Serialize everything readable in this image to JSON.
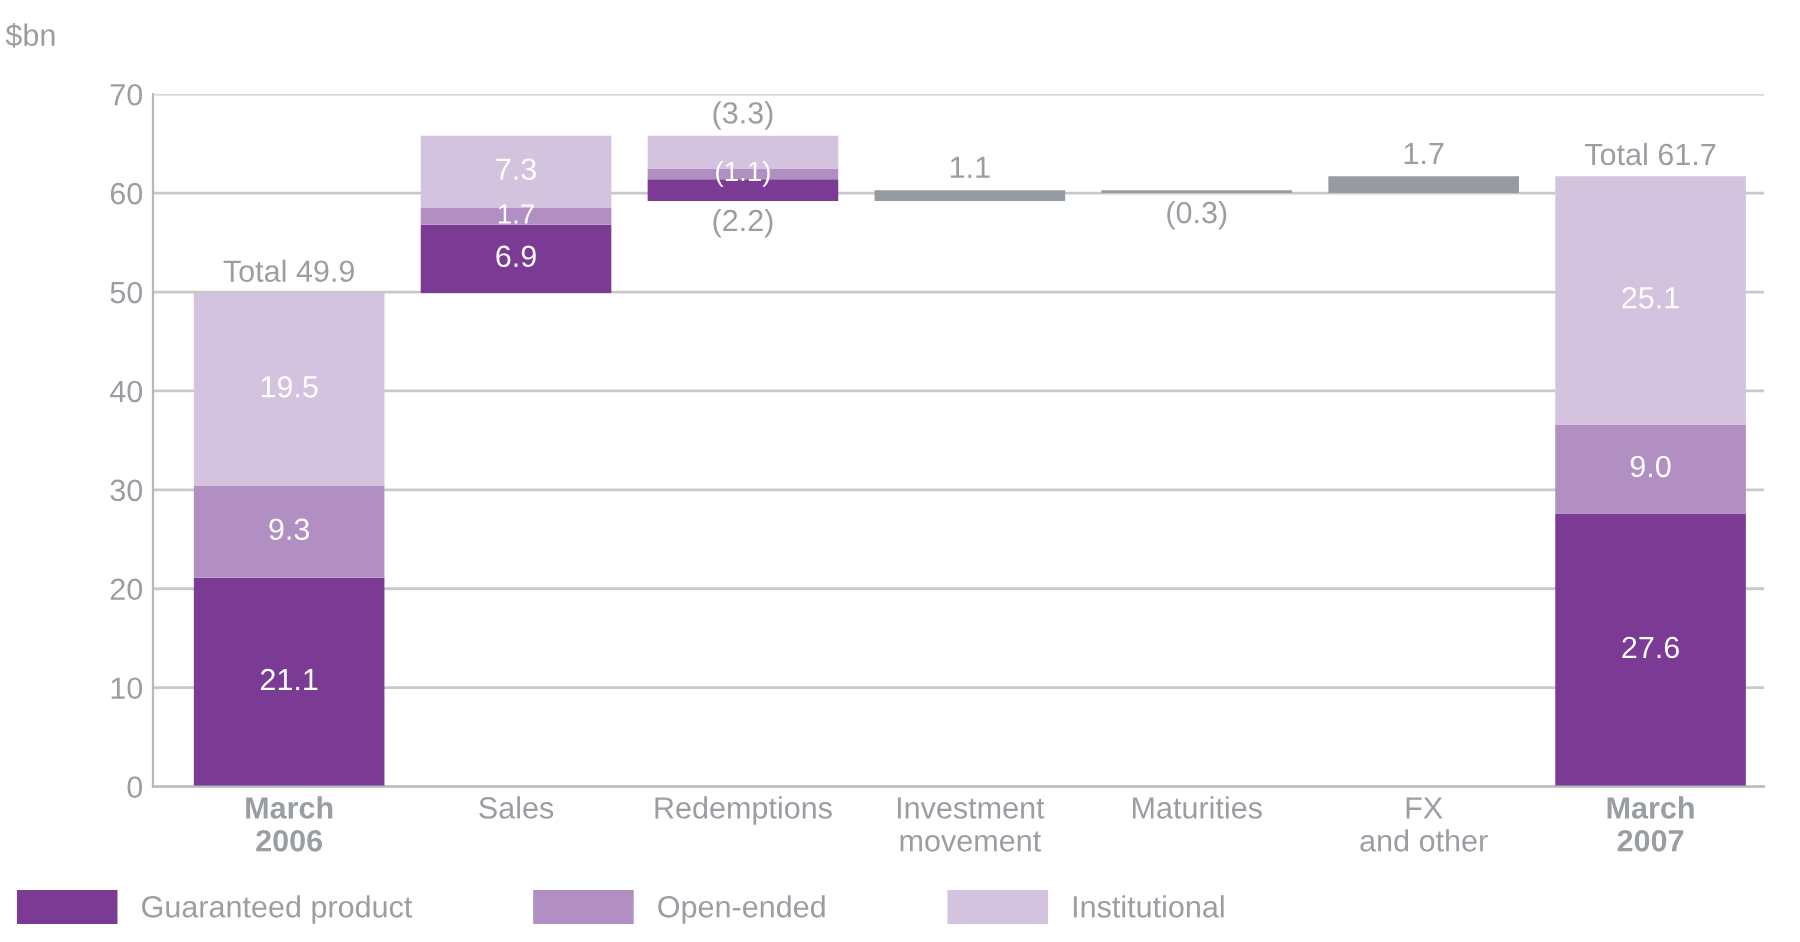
{
  "chart_data": {
    "type": "bar",
    "ylabel": "$bn",
    "categories": [
      "March\n2006",
      "Sales",
      "Redemptions",
      "Investment\nmovement",
      "Maturities",
      "FX\nand other",
      "March\n2007"
    ],
    "series": [
      {
        "name": "Guaranteed product",
        "color": "#7b3b94",
        "base": [
          0,
          49.9,
          59.2,
          null,
          null,
          null,
          0
        ],
        "values": [
          21.1,
          6.9,
          2.2,
          null,
          null,
          null,
          27.6
        ],
        "value_labels": [
          "21.1",
          "6.9",
          "(2.2)",
          null,
          null,
          null,
          "27.6"
        ]
      },
      {
        "name": "Open-ended",
        "color": "#b18fc2",
        "base": [
          21.1,
          56.8,
          61.4,
          null,
          null,
          null,
          27.6
        ],
        "values": [
          9.3,
          1.7,
          1.1,
          null,
          null,
          null,
          9.0
        ],
        "value_labels": [
          "9.3",
          "1.7",
          "(1.1)",
          null,
          null,
          null,
          "9.0"
        ]
      },
      {
        "name": "Institutional",
        "color": "#d4c3df",
        "base": [
          30.4,
          58.5,
          62.5,
          null,
          null,
          null,
          36.6
        ],
        "values": [
          19.5,
          7.3,
          3.3,
          null,
          null,
          null,
          25.1
        ],
        "value_labels": [
          "19.5",
          "7.3",
          "(3.3)",
          null,
          null,
          null,
          "25.1"
        ]
      },
      {
        "color": "#969ba1",
        "base": [
          null,
          null,
          null,
          59.2,
          60.0,
          60.0,
          null
        ],
        "values": [
          null,
          null,
          null,
          1.1,
          0.3,
          1.7,
          null
        ],
        "value_labels": [
          null,
          null,
          null,
          "1.1",
          "(0.3)",
          "1.7",
          null
        ]
      }
    ],
    "totals": [
      "Total 49.9",
      null,
      null,
      null,
      null,
      null,
      "Total 61.7"
    ],
    "ylim": [
      0,
      70
    ],
    "yticks": [
      0,
      10,
      20,
      30,
      40,
      50,
      60,
      70
    ],
    "grid": "y",
    "legend": "bottom left"
  }
}
